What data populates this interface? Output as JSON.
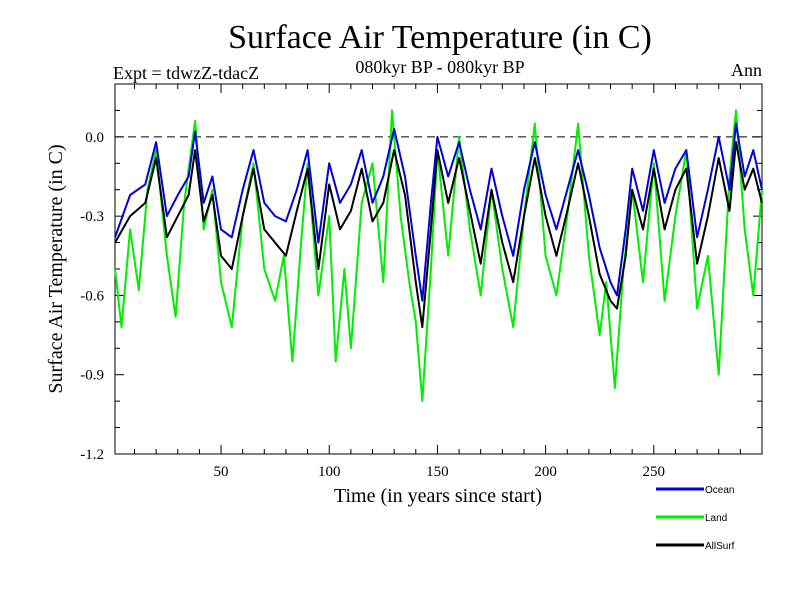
{
  "chart_data": {
    "type": "line",
    "title": "Surface Air Temperature (in C)",
    "subtitle": "080kyr BP - 080kyr BP",
    "experiment_label": "Expt = tdwzZ-tdacZ",
    "season_label": "Ann",
    "xlabel": "Time (in years since start)",
    "ylabel": "Surface Air Temperature (in C)",
    "xlim": [
      1,
      300
    ],
    "ylim": [
      -1.2,
      0.2
    ],
    "xticks": [
      50,
      100,
      150,
      200,
      250
    ],
    "yticks": [
      0.0,
      -0.3,
      -0.6,
      -0.9,
      -1.2
    ],
    "ytick_labels": [
      "0.0",
      "-0.3",
      "-0.6",
      "-0.9",
      "-1.2"
    ],
    "reference_line": 0.0,
    "legend_position": "bottom-right, outside plot",
    "series": [
      {
        "name": "Ocean",
        "color": "#0000dd",
        "x": [
          1,
          8,
          15,
          20,
          25,
          30,
          35,
          38,
          42,
          46,
          50,
          55,
          60,
          65,
          70,
          75,
          80,
          85,
          90,
          95,
          100,
          105,
          110,
          115,
          120,
          125,
          130,
          135,
          140,
          143,
          147,
          150,
          155,
          160,
          165,
          170,
          175,
          180,
          185,
          190,
          195,
          200,
          205,
          210,
          215,
          220,
          225,
          230,
          233,
          237,
          240,
          245,
          250,
          255,
          260,
          265,
          270,
          275,
          280,
          285,
          288,
          292,
          296,
          300
        ],
        "y": [
          -0.38,
          -0.22,
          -0.18,
          -0.02,
          -0.3,
          -0.22,
          -0.15,
          0.02,
          -0.25,
          -0.15,
          -0.35,
          -0.38,
          -0.2,
          -0.05,
          -0.25,
          -0.3,
          -0.32,
          -0.2,
          -0.05,
          -0.4,
          -0.1,
          -0.25,
          -0.18,
          -0.05,
          -0.25,
          -0.15,
          0.03,
          -0.15,
          -0.45,
          -0.62,
          -0.25,
          0.0,
          -0.15,
          -0.02,
          -0.2,
          -0.35,
          -0.12,
          -0.3,
          -0.45,
          -0.2,
          -0.02,
          -0.22,
          -0.35,
          -0.2,
          -0.05,
          -0.22,
          -0.42,
          -0.55,
          -0.6,
          -0.35,
          -0.12,
          -0.28,
          -0.05,
          -0.25,
          -0.12,
          -0.05,
          -0.38,
          -0.2,
          0.0,
          -0.2,
          0.05,
          -0.15,
          -0.05,
          -0.2
        ]
      },
      {
        "name": "Land",
        "color": "#00ee00",
        "x": [
          1,
          4,
          8,
          12,
          16,
          20,
          25,
          29,
          33,
          38,
          42,
          46,
          50,
          55,
          60,
          65,
          70,
          75,
          79,
          83,
          87,
          90,
          95,
          100,
          103,
          107,
          110,
          115,
          120,
          125,
          129,
          133,
          137,
          140,
          143,
          147,
          150,
          155,
          160,
          165,
          170,
          175,
          180,
          185,
          190,
          195,
          200,
          205,
          210,
          215,
          220,
          225,
          228,
          232,
          236,
          240,
          245,
          250,
          255,
          260,
          265,
          270,
          275,
          280,
          285,
          288,
          292,
          296,
          300
        ],
        "y": [
          -0.5,
          -0.72,
          -0.35,
          -0.58,
          -0.2,
          -0.05,
          -0.45,
          -0.68,
          -0.25,
          0.06,
          -0.35,
          -0.2,
          -0.55,
          -0.72,
          -0.3,
          -0.1,
          -0.5,
          -0.62,
          -0.45,
          -0.85,
          -0.4,
          -0.1,
          -0.6,
          -0.3,
          -0.85,
          -0.5,
          -0.8,
          -0.25,
          -0.1,
          -0.55,
          0.1,
          -0.3,
          -0.55,
          -0.7,
          -1.0,
          -0.5,
          -0.05,
          -0.45,
          0.0,
          -0.35,
          -0.6,
          -0.2,
          -0.5,
          -0.72,
          -0.3,
          0.05,
          -0.45,
          -0.6,
          -0.3,
          0.05,
          -0.45,
          -0.75,
          -0.55,
          -0.95,
          -0.5,
          -0.2,
          -0.55,
          -0.1,
          -0.62,
          -0.3,
          -0.05,
          -0.65,
          -0.45,
          -0.9,
          -0.15,
          0.1,
          -0.35,
          -0.6,
          -0.2
        ]
      },
      {
        "name": "AllSurf",
        "color": "#000000",
        "x": [
          1,
          8,
          15,
          20,
          25,
          30,
          35,
          38,
          42,
          46,
          50,
          55,
          60,
          65,
          70,
          75,
          80,
          85,
          90,
          95,
          100,
          105,
          110,
          115,
          120,
          125,
          130,
          135,
          140,
          143,
          147,
          150,
          155,
          160,
          165,
          170,
          175,
          180,
          185,
          190,
          195,
          200,
          205,
          210,
          215,
          220,
          225,
          230,
          233,
          237,
          240,
          245,
          250,
          255,
          260,
          265,
          270,
          275,
          280,
          285,
          288,
          292,
          296,
          300
        ],
        "y": [
          -0.4,
          -0.3,
          -0.25,
          -0.08,
          -0.38,
          -0.3,
          -0.22,
          -0.05,
          -0.32,
          -0.22,
          -0.45,
          -0.5,
          -0.3,
          -0.12,
          -0.35,
          -0.4,
          -0.45,
          -0.28,
          -0.12,
          -0.5,
          -0.18,
          -0.35,
          -0.28,
          -0.12,
          -0.32,
          -0.25,
          -0.05,
          -0.22,
          -0.55,
          -0.72,
          -0.35,
          -0.05,
          -0.25,
          -0.08,
          -0.28,
          -0.48,
          -0.2,
          -0.4,
          -0.55,
          -0.3,
          -0.08,
          -0.3,
          -0.45,
          -0.28,
          -0.1,
          -0.3,
          -0.52,
          -0.62,
          -0.65,
          -0.45,
          -0.2,
          -0.35,
          -0.12,
          -0.35,
          -0.2,
          -0.12,
          -0.48,
          -0.3,
          -0.08,
          -0.28,
          -0.02,
          -0.2,
          -0.12,
          -0.25
        ]
      }
    ]
  }
}
